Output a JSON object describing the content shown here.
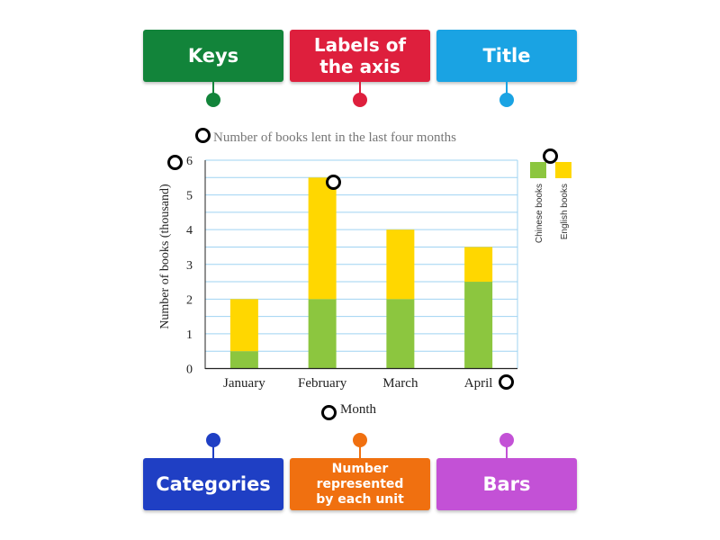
{
  "top_labels": [
    {
      "text": "Keys",
      "color": "#12843a"
    },
    {
      "text": "Labels of the axis",
      "color": "#de1f3d"
    },
    {
      "text": "Title",
      "color": "#1aa3e3"
    }
  ],
  "bottom_labels": [
    {
      "text": "Categories",
      "color": "#1f3fc4"
    },
    {
      "text": "Number represented by each unit",
      "color": "#f07010"
    },
    {
      "text": "Bars",
      "color": "#c351d6"
    }
  ],
  "chart_data": {
    "type": "bar",
    "stacked": true,
    "title": "Number of books lent in the last four months",
    "xlabel": "Month",
    "ylabel": "Number of books (thousand)",
    "categories": [
      "January",
      "February",
      "March",
      "April"
    ],
    "series": [
      {
        "name": "Chinese books",
        "values": [
          0.5,
          2,
          2,
          2.5
        ],
        "color": "#8cc63f"
      },
      {
        "name": "English books",
        "values": [
          1.5,
          3.5,
          2,
          1
        ],
        "color": "#ffd700"
      }
    ],
    "yticks": [
      "0",
      "1",
      "2",
      "3",
      "4",
      "5",
      "6"
    ],
    "ylim": [
      0,
      6
    ],
    "grid": true,
    "legend_position": "right",
    "gridline_color": "#9fd3f2"
  }
}
